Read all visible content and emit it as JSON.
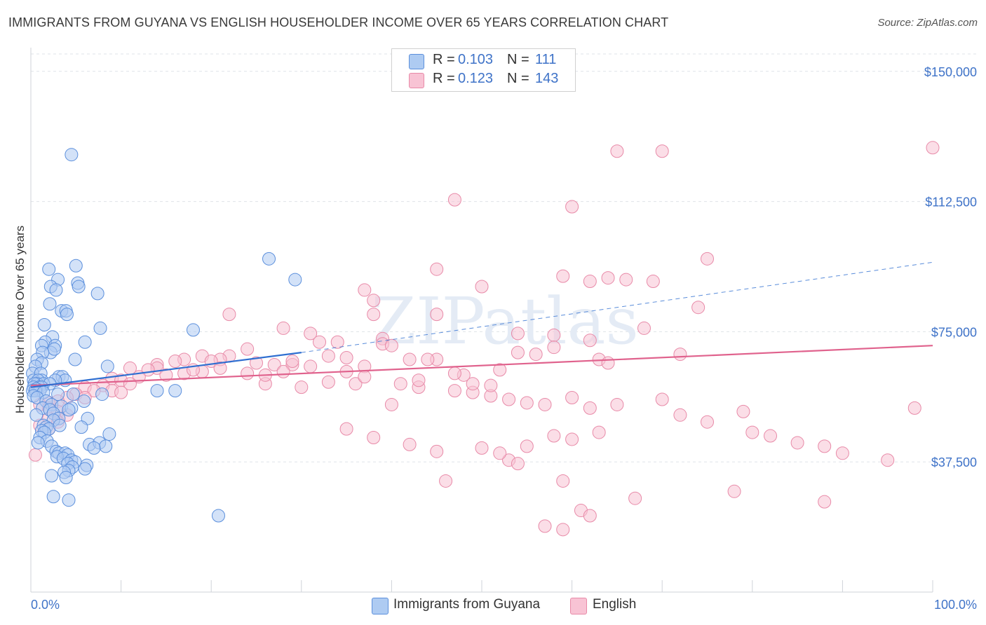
{
  "header": {
    "title": "IMMIGRANTS FROM GUYANA VS ENGLISH HOUSEHOLDER INCOME OVER 65 YEARS CORRELATION CHART",
    "source": "Source: ZipAtlas.com"
  },
  "watermark": "ZIPatlas",
  "legend": {
    "rows": [
      {
        "r_label": "R =",
        "r_value": "0.103",
        "n_label": "N =",
        "n_value": "111"
      },
      {
        "r_label": "R =",
        "r_value": "0.123",
        "n_label": "N =",
        "n_value": "143"
      }
    ]
  },
  "bottom_legend": {
    "series_a": "Immigrants from Guyana",
    "series_b": "English"
  },
  "chart_data": {
    "type": "scatter",
    "title": "IMMIGRANTS FROM GUYANA VS ENGLISH HOUSEHOLDER INCOME OVER 65 YEARS CORRELATION CHART",
    "xlabel": "",
    "ylabel": "Householder Income Over 65 years",
    "xlim": [
      0,
      100
    ],
    "ylim": [
      0,
      155000
    ],
    "x_tick_labels": [
      "0.0%",
      "100.0%"
    ],
    "y_ticks": [
      37500,
      75000,
      112500,
      150000
    ],
    "y_tick_labels": [
      "$37,500",
      "$75,000",
      "$112,500",
      "$150,000"
    ],
    "grid": true,
    "legend_position": "top-center",
    "colors": {
      "series_a_fill": "#aecbf2",
      "series_a_stroke": "#5b8fdc",
      "series_a_line": "#2f6fd1",
      "series_b_fill": "#f8c3d4",
      "series_b_stroke": "#e88aa8",
      "series_b_line": "#e0628d",
      "tick_text": "#3f73c8"
    },
    "series": [
      {
        "name": "Immigrants from Guyana",
        "r": 0.103,
        "n": 111,
        "trend": {
          "x0": 0,
          "y0": 59000,
          "x1": 30,
          "y1": 69000,
          "dash_to_x": 100,
          "dash_to_y": 95000
        },
        "points": [
          [
            4.5,
            126000
          ],
          [
            26.4,
            96000
          ],
          [
            29.3,
            90000
          ],
          [
            5,
            94000
          ],
          [
            2,
            93000
          ],
          [
            3,
            90000
          ],
          [
            5.2,
            89000
          ],
          [
            5.3,
            88000
          ],
          [
            2.2,
            88000
          ],
          [
            2.8,
            87000
          ],
          [
            7.4,
            86000
          ],
          [
            2.1,
            83000
          ],
          [
            3.4,
            81000
          ],
          [
            3.9,
            81000
          ],
          [
            4,
            80000
          ],
          [
            1.5,
            77000
          ],
          [
            7.7,
            76000
          ],
          [
            18,
            75500
          ],
          [
            2.4,
            73500
          ],
          [
            1.6,
            72000
          ],
          [
            6,
            72000
          ],
          [
            2.7,
            71000
          ],
          [
            1.2,
            71000
          ],
          [
            2.2,
            69000
          ],
          [
            2.6,
            70000
          ],
          [
            1.3,
            69000
          ],
          [
            4.9,
            67000
          ],
          [
            0.7,
            67000
          ],
          [
            1.2,
            66000
          ],
          [
            8.5,
            65000
          ],
          [
            0.5,
            65000
          ],
          [
            0.2,
            63000
          ],
          [
            1.1,
            63000
          ],
          [
            3.1,
            62000
          ],
          [
            3.5,
            62000
          ],
          [
            3.8,
            61000
          ],
          [
            2.7,
            61000
          ],
          [
            0.3,
            61000
          ],
          [
            1.2,
            61000
          ],
          [
            0.8,
            61000
          ],
          [
            0.7,
            60000
          ],
          [
            1.4,
            60000
          ],
          [
            2.1,
            60000
          ],
          [
            0.4,
            60000
          ],
          [
            0.9,
            59000
          ],
          [
            1.2,
            59000
          ],
          [
            0.3,
            59000
          ],
          [
            0.6,
            58500
          ],
          [
            1.0,
            58000
          ],
          [
            0.2,
            58000
          ],
          [
            0.5,
            58000
          ],
          [
            1.4,
            57500
          ],
          [
            3.0,
            57000
          ],
          [
            4.7,
            57000
          ],
          [
            7.9,
            57000
          ],
          [
            14,
            58000
          ],
          [
            16,
            58000
          ],
          [
            0.3,
            56500
          ],
          [
            0.7,
            56000
          ],
          [
            1.7,
            55000
          ],
          [
            5.9,
            55000
          ],
          [
            2.3,
            54000
          ],
          [
            3.4,
            53500
          ],
          [
            4.5,
            53000
          ],
          [
            4.2,
            52500
          ],
          [
            1.3,
            53000
          ],
          [
            2.1,
            52500
          ],
          [
            2.5,
            51500
          ],
          [
            0.6,
            51000
          ],
          [
            3.1,
            50000
          ],
          [
            6.3,
            50000
          ],
          [
            2.5,
            49500
          ],
          [
            1.4,
            48000
          ],
          [
            1.7,
            47500
          ],
          [
            2.0,
            47000
          ],
          [
            3.2,
            48000
          ],
          [
            5.6,
            47500
          ],
          [
            1.2,
            46500
          ],
          [
            1.5,
            46000
          ],
          [
            8.7,
            45500
          ],
          [
            1.0,
            44500
          ],
          [
            1.8,
            43500
          ],
          [
            0.8,
            43000
          ],
          [
            6.5,
            42500
          ],
          [
            7.6,
            43000
          ],
          [
            8.3,
            42000
          ],
          [
            2.3,
            42000
          ],
          [
            7.0,
            41500
          ],
          [
            2.8,
            40500
          ],
          [
            3.1,
            40000
          ],
          [
            3.8,
            40000
          ],
          [
            4.1,
            39500
          ],
          [
            2.9,
            39000
          ],
          [
            3.6,
            38500
          ],
          [
            4.5,
            38000
          ],
          [
            4.9,
            37500
          ],
          [
            4.1,
            37000
          ],
          [
            6.2,
            36500
          ],
          [
            4.6,
            36000
          ],
          [
            6.0,
            35500
          ],
          [
            4.2,
            35000
          ],
          [
            3.7,
            34500
          ],
          [
            2.3,
            33500
          ],
          [
            3.9,
            33000
          ],
          [
            2.5,
            27500
          ],
          [
            4.2,
            26500
          ],
          [
            20.8,
            22000
          ]
        ]
      },
      {
        "name": "English",
        "r": 0.123,
        "n": 143,
        "trend": {
          "x0": 0,
          "y0": 59500,
          "x1": 100,
          "y1": 71000
        },
        "points": [
          [
            100,
            128000
          ],
          [
            65,
            127000
          ],
          [
            70,
            127000
          ],
          [
            47,
            113000
          ],
          [
            60,
            111000
          ],
          [
            75,
            96000
          ],
          [
            45,
            93000
          ],
          [
            59,
            91000
          ],
          [
            66,
            90000
          ],
          [
            64,
            90500
          ],
          [
            62,
            89500
          ],
          [
            69,
            89500
          ],
          [
            50,
            88000
          ],
          [
            37,
            87000
          ],
          [
            38,
            84000
          ],
          [
            74,
            82000
          ],
          [
            22,
            80000
          ],
          [
            38,
            80000
          ],
          [
            45,
            80000
          ],
          [
            28,
            76000
          ],
          [
            68,
            76000
          ],
          [
            31,
            74500
          ],
          [
            39,
            73000
          ],
          [
            54,
            74500
          ],
          [
            58,
            74000
          ],
          [
            62,
            72500
          ],
          [
            32,
            72000
          ],
          [
            34,
            72000
          ],
          [
            39,
            71500
          ],
          [
            40,
            71000
          ],
          [
            58,
            70500
          ],
          [
            24,
            70000
          ],
          [
            54,
            69000
          ],
          [
            56,
            68500
          ],
          [
            72,
            68500
          ],
          [
            33,
            68000
          ],
          [
            19,
            68000
          ],
          [
            22,
            68000
          ],
          [
            35,
            67500
          ],
          [
            42,
            67000
          ],
          [
            45,
            67000
          ],
          [
            21,
            67000
          ],
          [
            17,
            67000
          ],
          [
            16,
            66500
          ],
          [
            20,
            66500
          ],
          [
            14,
            65500
          ],
          [
            63,
            67000
          ],
          [
            64,
            66000
          ],
          [
            25,
            66000
          ],
          [
            27,
            65500
          ],
          [
            29,
            65500
          ],
          [
            37,
            65000
          ],
          [
            14,
            64500
          ],
          [
            11,
            64500
          ],
          [
            13,
            64000
          ],
          [
            19,
            63500
          ],
          [
            17,
            63000
          ],
          [
            15,
            62500
          ],
          [
            12,
            62000
          ],
          [
            9,
            61500
          ],
          [
            10,
            61000
          ],
          [
            11,
            60000
          ],
          [
            8,
            59500
          ],
          [
            6,
            59000
          ],
          [
            7,
            58000
          ],
          [
            9,
            58000
          ],
          [
            10,
            57500
          ],
          [
            5,
            57000
          ],
          [
            4,
            56000
          ],
          [
            6,
            56000
          ],
          [
            3,
            55000
          ],
          [
            2,
            54500
          ],
          [
            1,
            54000
          ],
          [
            2,
            53000
          ],
          [
            3,
            52000
          ],
          [
            4,
            51000
          ],
          [
            2,
            50000
          ],
          [
            3,
            49000
          ],
          [
            1,
            48000
          ],
          [
            2,
            47000
          ],
          [
            24,
            63000
          ],
          [
            26,
            60000
          ],
          [
            30,
            59000
          ],
          [
            33,
            60500
          ],
          [
            36,
            60000
          ],
          [
            41,
            60000
          ],
          [
            43,
            59000
          ],
          [
            47,
            58000
          ],
          [
            49,
            57500
          ],
          [
            51,
            56500
          ],
          [
            53,
            55500
          ],
          [
            55,
            54500
          ],
          [
            57,
            54000
          ],
          [
            60,
            56000
          ],
          [
            62,
            53000
          ],
          [
            65,
            54000
          ],
          [
            70,
            55500
          ],
          [
            72,
            51000
          ],
          [
            75,
            49000
          ],
          [
            79,
            52000
          ],
          [
            80,
            46000
          ],
          [
            82,
            45000
          ],
          [
            85,
            43000
          ],
          [
            88,
            42000
          ],
          [
            90,
            40000
          ],
          [
            95,
            38000
          ],
          [
            98,
            53000
          ],
          [
            63,
            46000
          ],
          [
            58,
            45000
          ],
          [
            60,
            44000
          ],
          [
            55,
            42000
          ],
          [
            50,
            41500
          ],
          [
            45,
            40500
          ],
          [
            42,
            42500
          ],
          [
            38,
            44500
          ],
          [
            35,
            47000
          ],
          [
            53,
            38000
          ],
          [
            54,
            37000
          ],
          [
            59,
            32000
          ],
          [
            61,
            23500
          ],
          [
            62,
            22000
          ],
          [
            57,
            19000
          ],
          [
            59,
            18000
          ],
          [
            67,
            27000
          ],
          [
            78,
            29000
          ],
          [
            88,
            26000
          ],
          [
            46,
            32000
          ],
          [
            52,
            40000
          ],
          [
            40,
            54000
          ],
          [
            43,
            61000
          ],
          [
            48,
            62500
          ],
          [
            52,
            64000
          ],
          [
            44,
            67000
          ],
          [
            47,
            63000
          ],
          [
            49,
            60000
          ],
          [
            51,
            59500
          ],
          [
            0.5,
            39500
          ],
          [
            29,
            66500
          ],
          [
            31,
            65000
          ],
          [
            35,
            63500
          ],
          [
            37,
            62000
          ],
          [
            28,
            63500
          ],
          [
            26,
            62500
          ],
          [
            21,
            64500
          ],
          [
            18,
            64000
          ]
        ]
      }
    ]
  }
}
